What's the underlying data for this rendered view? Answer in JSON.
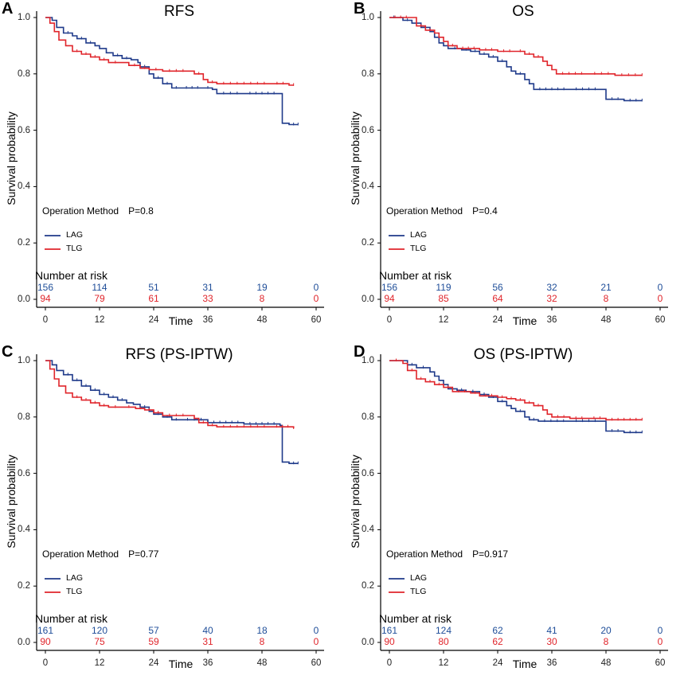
{
  "colors": {
    "LAG": "#1f3a8a",
    "TLG": "#e0252b",
    "nar_LAG": "#1f4e99",
    "nar_TLG": "#e0252b",
    "axis": "#000000"
  },
  "chart_data": [
    {
      "letter": "A",
      "type": "line",
      "title": "RFS",
      "xlabel": "Time",
      "ylabel": "Survival probability",
      "xlim": [
        0,
        60
      ],
      "ylim": [
        0,
        1
      ],
      "x_ticks": [
        "0",
        "12",
        "24",
        "36",
        "48",
        "60"
      ],
      "y_ticks": [
        "0.0",
        "0.2",
        "0.4",
        "0.6",
        "0.8",
        "1.0"
      ],
      "legend_title": "Operation Method",
      "p_value": "P=0.8",
      "legend": [
        "LAG",
        "TLG"
      ],
      "risk_title": "Number at risk",
      "number_at_risk": {
        "LAG": [
          "156",
          "114",
          "51",
          "31",
          "19",
          "0"
        ],
        "TLG": [
          "94",
          "79",
          "61",
          "33",
          "8",
          "0"
        ]
      },
      "series": [
        {
          "name": "LAG",
          "points": [
            [
              0,
              1.0
            ],
            [
              1.5,
              0.99
            ],
            [
              2.5,
              0.965
            ],
            [
              4,
              0.945
            ],
            [
              6,
              0.935
            ],
            [
              7,
              0.925
            ],
            [
              9,
              0.91
            ],
            [
              11,
              0.9
            ],
            [
              12,
              0.89
            ],
            [
              13.5,
              0.875
            ],
            [
              15,
              0.865
            ],
            [
              17,
              0.855
            ],
            [
              19,
              0.85
            ],
            [
              20.5,
              0.84
            ],
            [
              21,
              0.825
            ],
            [
              23,
              0.8
            ],
            [
              24,
              0.785
            ],
            [
              26,
              0.765
            ],
            [
              28,
              0.75
            ],
            [
              30,
              0.75
            ],
            [
              35,
              0.75
            ],
            [
              37,
              0.745
            ],
            [
              38,
              0.73
            ],
            [
              44,
              0.73
            ],
            [
              52,
              0.73
            ],
            [
              52.5,
              0.625
            ],
            [
              54,
              0.62
            ],
            [
              56,
              0.62
            ]
          ]
        },
        {
          "name": "TLG",
          "points": [
            [
              0,
              1.0
            ],
            [
              1,
              0.98
            ],
            [
              2,
              0.95
            ],
            [
              3,
              0.92
            ],
            [
              4.5,
              0.9
            ],
            [
              6,
              0.88
            ],
            [
              8,
              0.87
            ],
            [
              10,
              0.86
            ],
            [
              12,
              0.85
            ],
            [
              14,
              0.84
            ],
            [
              17,
              0.84
            ],
            [
              18.5,
              0.83
            ],
            [
              21,
              0.82
            ],
            [
              23,
              0.815
            ],
            [
              26,
              0.81
            ],
            [
              32,
              0.81
            ],
            [
              33,
              0.8
            ],
            [
              35,
              0.78
            ],
            [
              36,
              0.77
            ],
            [
              38,
              0.765
            ],
            [
              50,
              0.765
            ],
            [
              54,
              0.76
            ],
            [
              55,
              0.76
            ]
          ]
        }
      ]
    },
    {
      "letter": "B",
      "type": "line",
      "title": "OS",
      "xlabel": "Time",
      "ylabel": "Survival probability",
      "xlim": [
        0,
        60
      ],
      "ylim": [
        0,
        1
      ],
      "x_ticks": [
        "0",
        "12",
        "24",
        "36",
        "48",
        "60"
      ],
      "y_ticks": [
        "0.0",
        "0.2",
        "0.4",
        "0.6",
        "0.8",
        "1.0"
      ],
      "legend_title": "Operation Method",
      "p_value": "P=0.4",
      "legend": [
        "LAG",
        "TLG"
      ],
      "risk_title": "Number at risk",
      "number_at_risk": {
        "LAG": [
          "156",
          "119",
          "56",
          "32",
          "21",
          "0"
        ],
        "TLG": [
          "94",
          "85",
          "64",
          "32",
          "8",
          "0"
        ]
      },
      "series": [
        {
          "name": "LAG",
          "points": [
            [
              0,
              1.0
            ],
            [
              2,
              1.0
            ],
            [
              3,
              0.99
            ],
            [
              5,
              0.98
            ],
            [
              7,
              0.965
            ],
            [
              9,
              0.95
            ],
            [
              10,
              0.93
            ],
            [
              11,
              0.91
            ],
            [
              12,
              0.9
            ],
            [
              13,
              0.89
            ],
            [
              16,
              0.885
            ],
            [
              18,
              0.88
            ],
            [
              20,
              0.87
            ],
            [
              22,
              0.86
            ],
            [
              24,
              0.845
            ],
            [
              26,
              0.825
            ],
            [
              27,
              0.81
            ],
            [
              28,
              0.8
            ],
            [
              30,
              0.78
            ],
            [
              31,
              0.765
            ],
            [
              32,
              0.745
            ],
            [
              40,
              0.745
            ],
            [
              47,
              0.745
            ],
            [
              48,
              0.71
            ],
            [
              52,
              0.705
            ],
            [
              56,
              0.705
            ]
          ]
        },
        {
          "name": "TLG",
          "points": [
            [
              0,
              1.0
            ],
            [
              5,
              1.0
            ],
            [
              6,
              0.97
            ],
            [
              8,
              0.955
            ],
            [
              10,
              0.945
            ],
            [
              11,
              0.93
            ],
            [
              12,
              0.915
            ],
            [
              13,
              0.9
            ],
            [
              15,
              0.89
            ],
            [
              20,
              0.885
            ],
            [
              24,
              0.88
            ],
            [
              28,
              0.88
            ],
            [
              30,
              0.87
            ],
            [
              32,
              0.86
            ],
            [
              34,
              0.845
            ],
            [
              35,
              0.83
            ],
            [
              36,
              0.815
            ],
            [
              37,
              0.8
            ],
            [
              44,
              0.8
            ],
            [
              50,
              0.795
            ],
            [
              56,
              0.795
            ]
          ]
        }
      ]
    },
    {
      "letter": "C",
      "type": "line",
      "title": "RFS (PS-IPTW)",
      "xlabel": "Time",
      "ylabel": "Survival probability",
      "xlim": [
        0,
        60
      ],
      "ylim": [
        0,
        1
      ],
      "x_ticks": [
        "0",
        "12",
        "24",
        "36",
        "48",
        "60"
      ],
      "y_ticks": [
        "0.0",
        "0.2",
        "0.4",
        "0.6",
        "0.8",
        "1.0"
      ],
      "legend_title": "Operation Method",
      "p_value": "P=0.77",
      "legend": [
        "LAG",
        "TLG"
      ],
      "risk_title": "Number at risk",
      "number_at_risk": {
        "LAG": [
          "161",
          "120",
          "57",
          "40",
          "18",
          "0"
        ],
        "TLG": [
          "90",
          "75",
          "59",
          "31",
          "8",
          "0"
        ]
      },
      "series": [
        {
          "name": "LAG",
          "points": [
            [
              0,
              1.0
            ],
            [
              1.5,
              0.985
            ],
            [
              2.5,
              0.965
            ],
            [
              4,
              0.95
            ],
            [
              6,
              0.93
            ],
            [
              8,
              0.91
            ],
            [
              10,
              0.895
            ],
            [
              12,
              0.88
            ],
            [
              14,
              0.87
            ],
            [
              16,
              0.86
            ],
            [
              18,
              0.85
            ],
            [
              19.5,
              0.845
            ],
            [
              21,
              0.835
            ],
            [
              23,
              0.82
            ],
            [
              24,
              0.81
            ],
            [
              26,
              0.8
            ],
            [
              28,
              0.79
            ],
            [
              30,
              0.79
            ],
            [
              36,
              0.78
            ],
            [
              44,
              0.775
            ],
            [
              52,
              0.77
            ],
            [
              52.5,
              0.64
            ],
            [
              54,
              0.635
            ],
            [
              56,
              0.635
            ]
          ]
        },
        {
          "name": "TLG",
          "points": [
            [
              0,
              1.0
            ],
            [
              1,
              0.97
            ],
            [
              2,
              0.935
            ],
            [
              3,
              0.91
            ],
            [
              4.5,
              0.885
            ],
            [
              6,
              0.87
            ],
            [
              8,
              0.86
            ],
            [
              10,
              0.85
            ],
            [
              12,
              0.84
            ],
            [
              14,
              0.835
            ],
            [
              17,
              0.835
            ],
            [
              20,
              0.83
            ],
            [
              22,
              0.825
            ],
            [
              24,
              0.815
            ],
            [
              26,
              0.805
            ],
            [
              32,
              0.805
            ],
            [
              33,
              0.795
            ],
            [
              34,
              0.78
            ],
            [
              36,
              0.77
            ],
            [
              38,
              0.765
            ],
            [
              50,
              0.765
            ],
            [
              55,
              0.76
            ]
          ]
        }
      ]
    },
    {
      "letter": "D",
      "type": "line",
      "title": "OS (PS-IPTW)",
      "xlabel": "Time",
      "ylabel": "Survival probability",
      "xlim": [
        0,
        60
      ],
      "ylim": [
        0,
        1
      ],
      "x_ticks": [
        "0",
        "12",
        "24",
        "36",
        "48",
        "60"
      ],
      "y_ticks": [
        "0.0",
        "0.2",
        "0.4",
        "0.6",
        "0.8",
        "1.0"
      ],
      "legend_title": "Operation Method",
      "p_value": "P=0.917",
      "legend": [
        "LAG",
        "TLG"
      ],
      "risk_title": "Number at risk",
      "number_at_risk": {
        "LAG": [
          "161",
          "124",
          "62",
          "41",
          "20",
          "0"
        ],
        "TLG": [
          "90",
          "80",
          "62",
          "30",
          "8",
          "0"
        ]
      },
      "series": [
        {
          "name": "LAG",
          "points": [
            [
              0,
              1.0
            ],
            [
              3,
              1.0
            ],
            [
              4,
              0.985
            ],
            [
              6,
              0.975
            ],
            [
              9,
              0.96
            ],
            [
              10,
              0.945
            ],
            [
              11,
              0.93
            ],
            [
              12,
              0.915
            ],
            [
              13,
              0.9
            ],
            [
              15,
              0.895
            ],
            [
              17,
              0.89
            ],
            [
              20,
              0.88
            ],
            [
              22,
              0.87
            ],
            [
              24,
              0.855
            ],
            [
              26,
              0.84
            ],
            [
              27,
              0.83
            ],
            [
              28,
              0.82
            ],
            [
              30,
              0.8
            ],
            [
              31,
              0.79
            ],
            [
              33,
              0.785
            ],
            [
              40,
              0.785
            ],
            [
              47,
              0.785
            ],
            [
              48,
              0.75
            ],
            [
              52,
              0.745
            ],
            [
              56,
              0.745
            ]
          ]
        },
        {
          "name": "TLG",
          "points": [
            [
              0,
              1.0
            ],
            [
              3,
              0.99
            ],
            [
              4,
              0.965
            ],
            [
              6,
              0.935
            ],
            [
              8,
              0.925
            ],
            [
              10,
              0.915
            ],
            [
              12,
              0.905
            ],
            [
              14,
              0.89
            ],
            [
              18,
              0.885
            ],
            [
              20,
              0.875
            ],
            [
              24,
              0.87
            ],
            [
              26,
              0.865
            ],
            [
              28,
              0.86
            ],
            [
              30,
              0.85
            ],
            [
              32,
              0.84
            ],
            [
              34,
              0.825
            ],
            [
              35,
              0.81
            ],
            [
              36,
              0.8
            ],
            [
              40,
              0.795
            ],
            [
              44,
              0.795
            ],
            [
              48,
              0.79
            ],
            [
              56,
              0.79
            ]
          ]
        }
      ]
    }
  ]
}
